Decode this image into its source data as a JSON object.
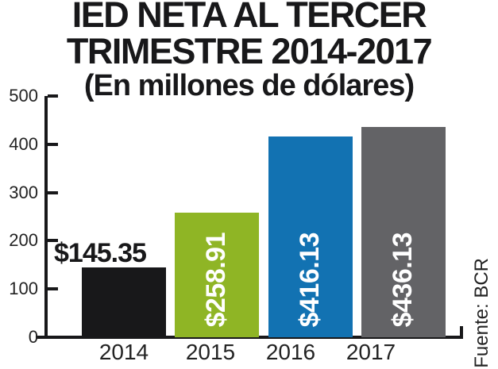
{
  "title": {
    "line1": "IED NETA AL TERCER",
    "line2": "TRIMESTRE 2014-2017",
    "subtitle": "(En millones de dólares)"
  },
  "source": "Fuente: BCR",
  "colors": {
    "text_black": "#18181a",
    "bar_2014": "#18181a",
    "bar_2015": "#8fb525",
    "bar_2016": "#1272b2",
    "bar_2017": "#636366",
    "inside_label": "#ffffff",
    "background": "#ffffff"
  },
  "chart_data": {
    "type": "bar",
    "title": "IED NETA AL TERCER TRIMESTRE 2014-2017",
    "subtitle": "(En millones de dólares)",
    "categories": [
      "2014",
      "2015",
      "2016",
      "2017"
    ],
    "values": [
      145.35,
      258.91,
      416.13,
      436.13
    ],
    "value_labels": [
      "$145.35",
      "$258.91",
      "$416.13",
      "$436.13"
    ],
    "value_label_inside": [
      false,
      true,
      true,
      true
    ],
    "bar_colors": [
      "#18181a",
      "#8fb525",
      "#1272b2",
      "#636366"
    ],
    "xlabel": "",
    "ylabel": "",
    "ylim": [
      0,
      500
    ],
    "yticks": [
      0,
      100,
      200,
      300,
      400,
      500
    ],
    "grid": false,
    "legend": false,
    "source": "Fuente: BCR"
  }
}
